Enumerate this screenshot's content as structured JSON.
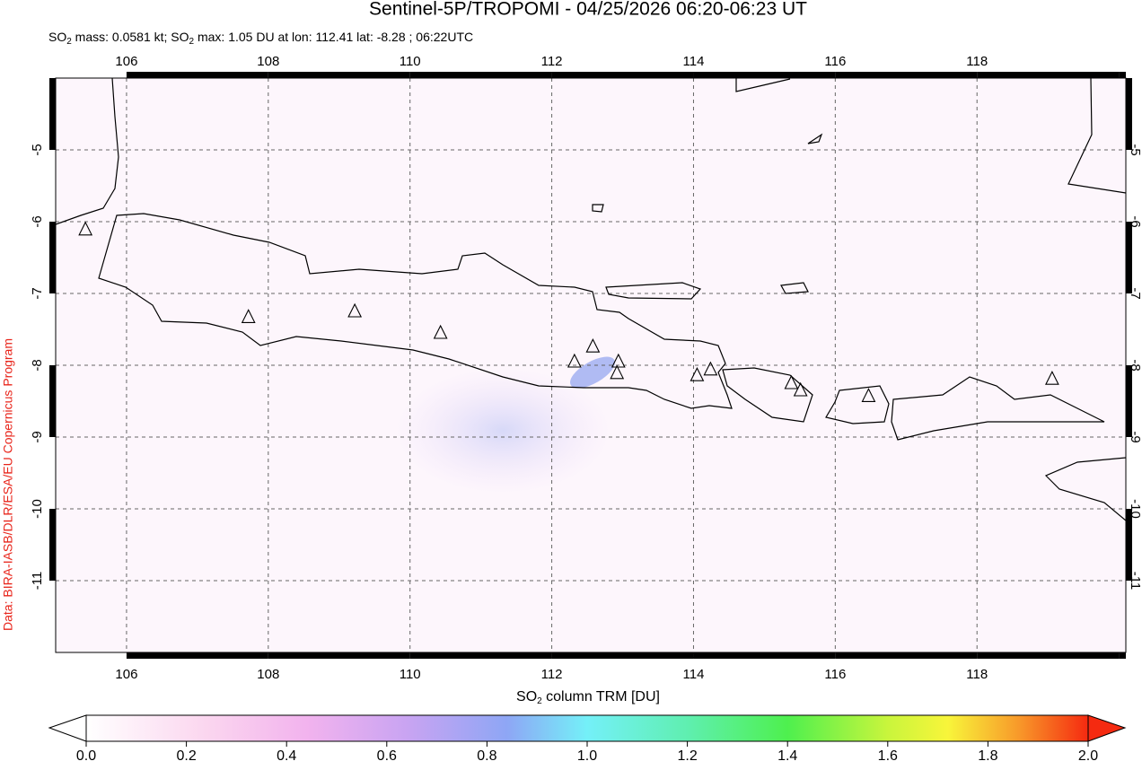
{
  "chart_data": {
    "type": "map",
    "title": "Sentinel-5P/TROPOMI - 04/25/2026 06:20-06:23 UT",
    "subtitle_parts": [
      "SO",
      "2",
      " mass: 0.0581 kt; SO",
      "2",
      " max: 1.05 DU at lon: 112.41 lat: -8.28 ; 06:22UTC"
    ],
    "side_note": "Data: BIRA-IASB/DLR/ESA/EU Copernicus Program",
    "xlim": [
      105,
      120.1
    ],
    "ylim": [
      -12,
      -4
    ],
    "xticks": [
      106,
      108,
      110,
      112,
      114,
      116,
      118
    ],
    "yticks": [
      -5,
      -6,
      -7,
      -8,
      -9,
      -10,
      -11
    ],
    "grid": true,
    "volcanoes": {
      "x": [
        105.42,
        107.72,
        109.22,
        110.43,
        112.32,
        112.58,
        112.94,
        112.92,
        114.05,
        114.24,
        115.38,
        115.51,
        116.47,
        119.06
      ],
      "y": [
        -6.11,
        -7.33,
        -7.25,
        -7.55,
        -7.95,
        -7.74,
        -7.95,
        -8.11,
        -8.14,
        -8.06,
        -8.25,
        -8.35,
        -8.43,
        -8.19
      ]
    },
    "colorbar": {
      "label_parts": [
        "SO",
        "2",
        " column TRM [DU]"
      ],
      "lim": [
        0,
        2
      ],
      "ticks": [
        {
          "value": 0,
          "label": "0.0"
        },
        {
          "value": 0.2,
          "label": "0.2"
        },
        {
          "value": 0.4,
          "label": "0.4"
        },
        {
          "value": 0.6,
          "label": "0.6"
        },
        {
          "value": 0.8,
          "label": "0.8"
        },
        {
          "value": 1,
          "label": "1.0"
        },
        {
          "value": 1.2,
          "label": "1.2"
        },
        {
          "value": 1.4,
          "label": "1.4"
        },
        {
          "value": 1.6,
          "label": "1.6"
        },
        {
          "value": 1.8,
          "label": "1.8"
        },
        {
          "value": 2,
          "label": "2.0"
        }
      ]
    }
  }
}
